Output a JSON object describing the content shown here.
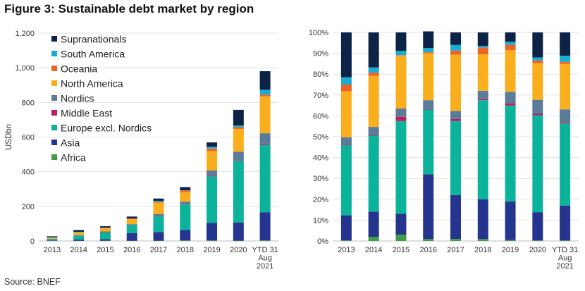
{
  "title": "Figure 3: Sustainable debt market by region",
  "source": "Source: BNEF",
  "colors": {
    "Africa": "#3f9e4a",
    "Asia": "#24348f",
    "Europe excl. Nordics": "#0bb39b",
    "Middle East": "#c41a5e",
    "Nordics": "#5a7b9a",
    "North America": "#f9ae1e",
    "Oceania": "#ee6326",
    "South America": "#1aadd3",
    "Supranationals": "#0c2347"
  },
  "chart_data": [
    {
      "type": "bar",
      "stacked": true,
      "xlabel": "",
      "ylabel": "USDbn",
      "ylim": [
        0,
        1200
      ],
      "yticks": [
        "0",
        "200",
        "400",
        "600",
        "800",
        "1,000",
        "1,200"
      ],
      "grid": true,
      "legend": "top-left",
      "legend_order": [
        "Supranationals",
        "South America",
        "Oceania",
        "North America",
        "Nordics",
        "Middle East",
        "Europe excl. Nordics",
        "Asia",
        "Africa"
      ],
      "categories": [
        "2013",
        "2014",
        "2015",
        "2016",
        "2017",
        "2018",
        "2019",
        "2020",
        "YTD 31 Aug 2021"
      ],
      "category_lines": [
        [
          "2013"
        ],
        [
          "2014"
        ],
        [
          "2015"
        ],
        [
          "2016"
        ],
        [
          "2017"
        ],
        [
          "2018"
        ],
        [
          "2019"
        ],
        [
          "2020"
        ],
        [
          "YTD 31",
          "Aug",
          "2021"
        ]
      ],
      "series": [
        {
          "name": "Africa",
          "values": [
            0,
            1,
            2,
            1,
            2,
            3,
            3,
            2,
            3
          ]
        },
        {
          "name": "Asia",
          "values": [
            3,
            8,
            9,
            45,
            50,
            60,
            102,
            105,
            163
          ]
        },
        {
          "name": "Europe excl. Nordics",
          "values": [
            9,
            22,
            38,
            45,
            92,
            148,
            268,
            355,
            390
          ]
        },
        {
          "name": "Middle East",
          "values": [
            0,
            0,
            2,
            0,
            2,
            2,
            4,
            3,
            6
          ]
        },
        {
          "name": "Nordics",
          "values": [
            1,
            3,
            4,
            6,
            10,
            14,
            30,
            50,
            60
          ]
        },
        {
          "name": "North America",
          "values": [
            6,
            16,
            21,
            32,
            65,
            55,
            112,
            132,
            213
          ]
        },
        {
          "name": "Oceania",
          "values": [
            1,
            1,
            0,
            0,
            5,
            10,
            15,
            10,
            10
          ]
        },
        {
          "name": "South America",
          "values": [
            1,
            2,
            1,
            0,
            6,
            1,
            10,
            10,
            28
          ]
        },
        {
          "name": "Supranationals",
          "values": [
            6,
            10,
            8,
            12,
            13,
            18,
            25,
            90,
            107
          ]
        }
      ]
    },
    {
      "type": "bar",
      "stacked": true,
      "percent": true,
      "xlabel": "",
      "ylabel": "",
      "ylim": [
        0,
        100
      ],
      "yticks": [
        "0%",
        "10%",
        "20%",
        "30%",
        "40%",
        "50%",
        "60%",
        "70%",
        "80%",
        "90%",
        "100%"
      ],
      "grid": true,
      "categories": [
        "2013",
        "2014",
        "2015",
        "2016",
        "2017",
        "2018",
        "2019",
        "2020",
        "YTD 31 Aug 2021"
      ],
      "category_lines": [
        [
          "2013"
        ],
        [
          "2014"
        ],
        [
          "2015"
        ],
        [
          "2016"
        ],
        [
          "2017"
        ],
        [
          "2018"
        ],
        [
          "2019"
        ],
        [
          "2020"
        ],
        [
          "YTD 31",
          "Aug",
          "2021"
        ]
      ],
      "series": [
        {
          "name": "Africa",
          "values": [
            0.3,
            2,
            3,
            1,
            1,
            1,
            0.5,
            0.3,
            0.3
          ]
        },
        {
          "name": "Asia",
          "values": [
            12,
            12,
            10,
            31,
            21,
            19,
            18.5,
            13.5,
            16.7
          ]
        },
        {
          "name": "Europe excl. Nordics",
          "values": [
            33.7,
            36.5,
            44.5,
            31,
            35.5,
            47.5,
            46,
            46.5,
            39.5
          ]
        },
        {
          "name": "Middle East",
          "values": [
            0.4,
            0.3,
            2,
            0.2,
            1,
            0.5,
            1,
            0.7,
            0.5
          ]
        },
        {
          "name": "Nordics",
          "values": [
            3.3,
            3.9,
            4,
            4.3,
            3.8,
            4,
            5.5,
            6.7,
            6.1
          ]
        },
        {
          "name": "North America",
          "values": [
            22.1,
            24.5,
            25.4,
            22.5,
            27,
            17.5,
            20,
            17.5,
            21.8
          ]
        },
        {
          "name": "Oceania",
          "values": [
            3.2,
            1.5,
            0.2,
            0.5,
            2,
            3.2,
            2.5,
            1.3,
            1
          ]
        },
        {
          "name": "South America",
          "values": [
            3.5,
            2.5,
            2,
            2,
            2.7,
            0.8,
            1.5,
            1.5,
            2.9
          ]
        },
        {
          "name": "Supranationals",
          "values": [
            21.5,
            16.8,
            8.9,
            8,
            6,
            6.5,
            4.5,
            12,
            11.2
          ]
        }
      ]
    }
  ]
}
